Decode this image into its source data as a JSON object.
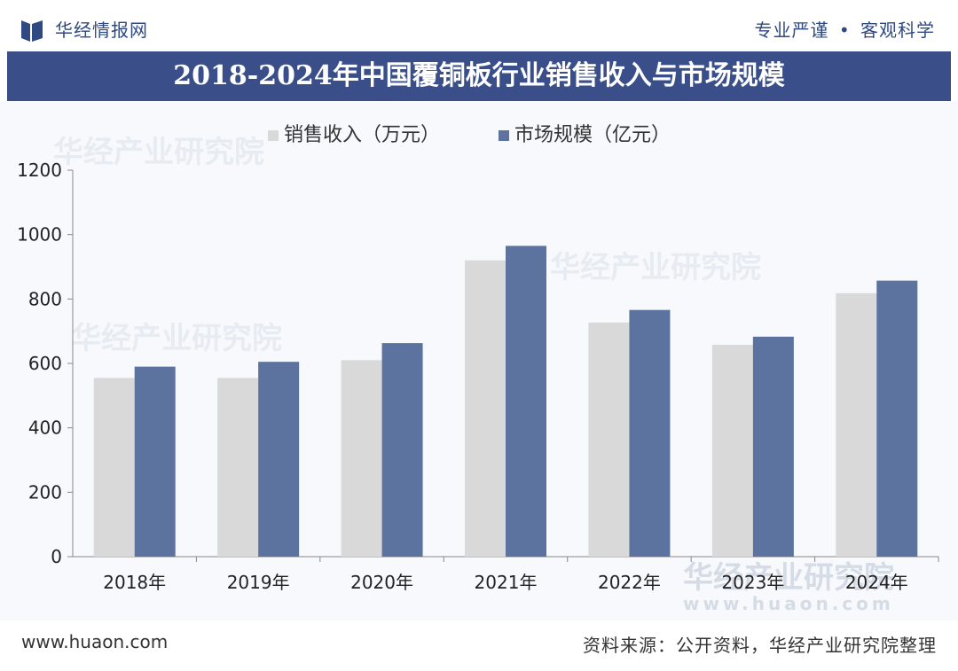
{
  "header": {
    "brand": "华经情报网",
    "tagline_left": "专业严谨",
    "tagline_sep": "•",
    "tagline_right": "客观科学"
  },
  "watermarks": [
    "华经产业研究院",
    "华经产业研究院",
    "华经产业研究院",
    "华经产业研究院"
  ],
  "watermark_url": "www.huaon.com",
  "footer": {
    "site": "www.huaon.com",
    "source": "资料来源：公开资料，华经产业研究院整理"
  },
  "colors": {
    "series1": "#d9d9d9",
    "series2": "#5c729f",
    "title_bg": "#3a4f8a"
  },
  "chart_data": {
    "type": "bar",
    "title": "2018-2024年中国覆铜板行业销售收入与市场规模",
    "categories": [
      "2018年",
      "2019年",
      "2020年",
      "2021年",
      "2022年",
      "2023年",
      "2024年"
    ],
    "series": [
      {
        "name": "销售收入（万元）",
        "values": [
          555,
          555,
          610,
          920,
          727,
          658,
          818
        ]
      },
      {
        "name": "市场规模（亿元）",
        "values": [
          590,
          605,
          663,
          965,
          766,
          683,
          857
        ]
      }
    ],
    "yticks": [
      0,
      200,
      400,
      600,
      800,
      1000,
      1200
    ],
    "ylim": [
      0,
      1200
    ],
    "legend_position": "top-center",
    "grid": false
  }
}
